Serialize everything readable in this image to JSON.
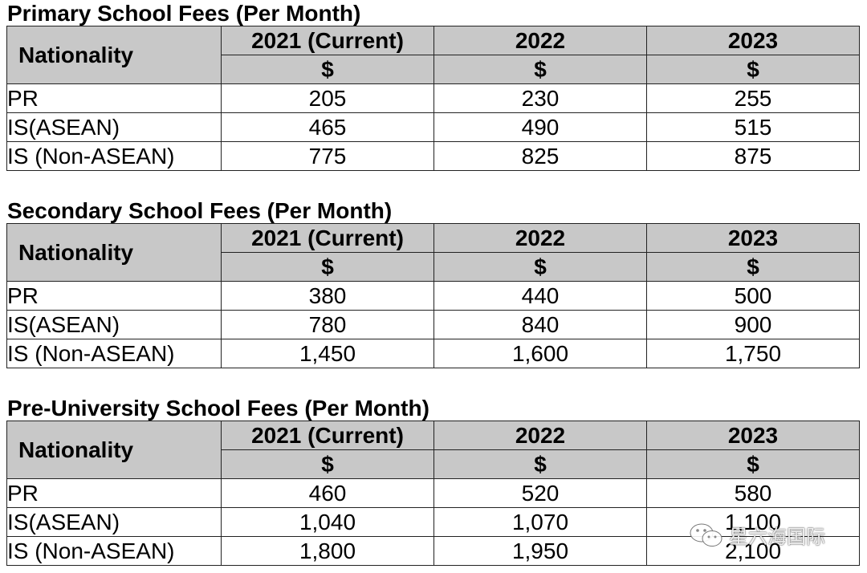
{
  "sections": [
    {
      "title": "Primary School Fees (Per Month)",
      "nationality_header": "Nationality",
      "years": [
        "2021 (Current)",
        "2022",
        "2023"
      ],
      "currency": [
        "$",
        "$",
        "$"
      ],
      "rows": [
        {
          "label": "PR",
          "values": [
            "205",
            "230",
            "255"
          ]
        },
        {
          "label": "IS(ASEAN)",
          "values": [
            "465",
            "490",
            "515"
          ]
        },
        {
          "label": "IS (Non-ASEAN)",
          "values": [
            "775",
            "825",
            "875"
          ]
        }
      ]
    },
    {
      "title": "Secondary School Fees (Per Month)",
      "nationality_header": "Nationality",
      "years": [
        "2021 (Current)",
        "2022",
        "2023"
      ],
      "currency": [
        "$",
        "$",
        "$"
      ],
      "rows": [
        {
          "label": "PR",
          "values": [
            "380",
            "440",
            "500"
          ]
        },
        {
          "label": "IS(ASEAN)",
          "values": [
            "780",
            "840",
            "900"
          ]
        },
        {
          "label": "IS (Non-ASEAN)",
          "values": [
            "1,450",
            "1,600",
            "1,750"
          ]
        }
      ]
    },
    {
      "title": "Pre-University School Fees (Per Month)",
      "nationality_header": "Nationality",
      "years": [
        "2021 (Current)",
        "2022",
        "2023"
      ],
      "currency": [
        "$",
        "$",
        "$"
      ],
      "rows": [
        {
          "label": "PR",
          "values": [
            "460",
            "520",
            "580"
          ]
        },
        {
          "label": "IS(ASEAN)",
          "values": [
            "1,040",
            "1,070",
            "1,100"
          ]
        },
        {
          "label": "IS (Non-ASEAN)",
          "values": [
            "1,800",
            "1,950",
            "2,100"
          ]
        }
      ]
    }
  ],
  "watermark": {
    "text": "星六海国际",
    "icon": "wechat-icon"
  },
  "colors": {
    "header_bg": "#c8c8c8",
    "border": "#222222"
  }
}
